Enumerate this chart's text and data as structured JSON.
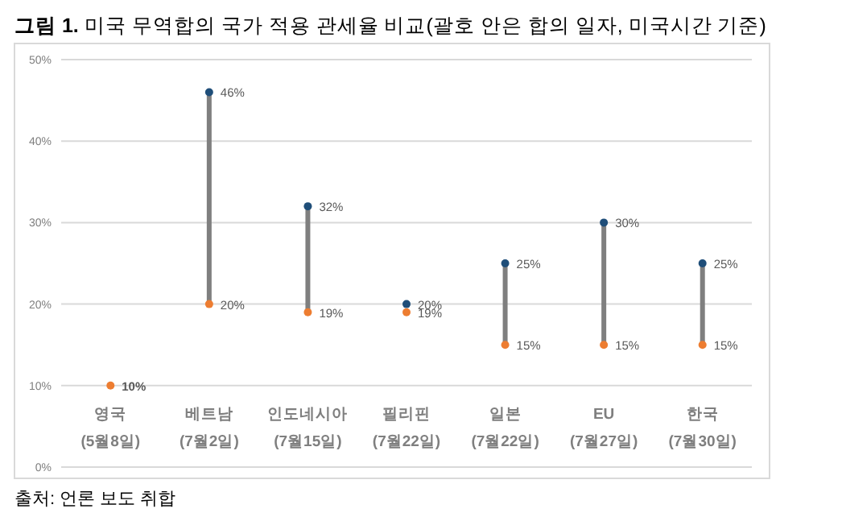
{
  "chart_data": {
    "type": "scatter",
    "title": "그림 1. 미국 무역합의 국가 적용 관세율 비교(괄호 안은 합의 일자, 미국시간 기준)",
    "categories": [
      "영국\n(5월8일)",
      "베트남\n(7월2일)",
      "인도네시아\n(7월15일)",
      "필리핀\n(7월22일)",
      "일본\n(7월22일)",
      "EU\n(7월27일)",
      "한국\n(7월30일)"
    ],
    "series": [
      {
        "type": "bar",
        "color": "#7f7f7f",
        "base": [
          null,
          20,
          19,
          null,
          15,
          15,
          15
        ],
        "values": [
          null,
          26,
          13,
          null,
          10,
          15,
          10
        ]
      },
      {
        "color": "#1f4e79",
        "values": [
          null,
          46,
          32,
          20,
          25,
          30,
          25
        ],
        "value_labels": [
          null,
          "46%",
          "32%",
          "20%",
          "25%",
          "30%",
          "25%"
        ]
      },
      {
        "color": "#ed7d31",
        "values": [
          10,
          20,
          19,
          19,
          15,
          15,
          15
        ],
        "value_labels": [
          "10%",
          "20%",
          "19%",
          "19%",
          "15%",
          "15%",
          "15%"
        ]
      }
    ],
    "ylim": [
      0,
      50
    ],
    "yticks": [
      {
        "value": 0,
        "label": "0%"
      },
      {
        "value": 10,
        "label": "10%"
      },
      {
        "value": 20,
        "label": "20%"
      },
      {
        "value": 30,
        "label": "30%"
      },
      {
        "value": 40,
        "label": "40%"
      },
      {
        "value": 50,
        "label": "50%"
      }
    ],
    "grid": "y",
    "marker": "circle",
    "annotations": [
      "출처: 언론 보도 취합"
    ]
  }
}
